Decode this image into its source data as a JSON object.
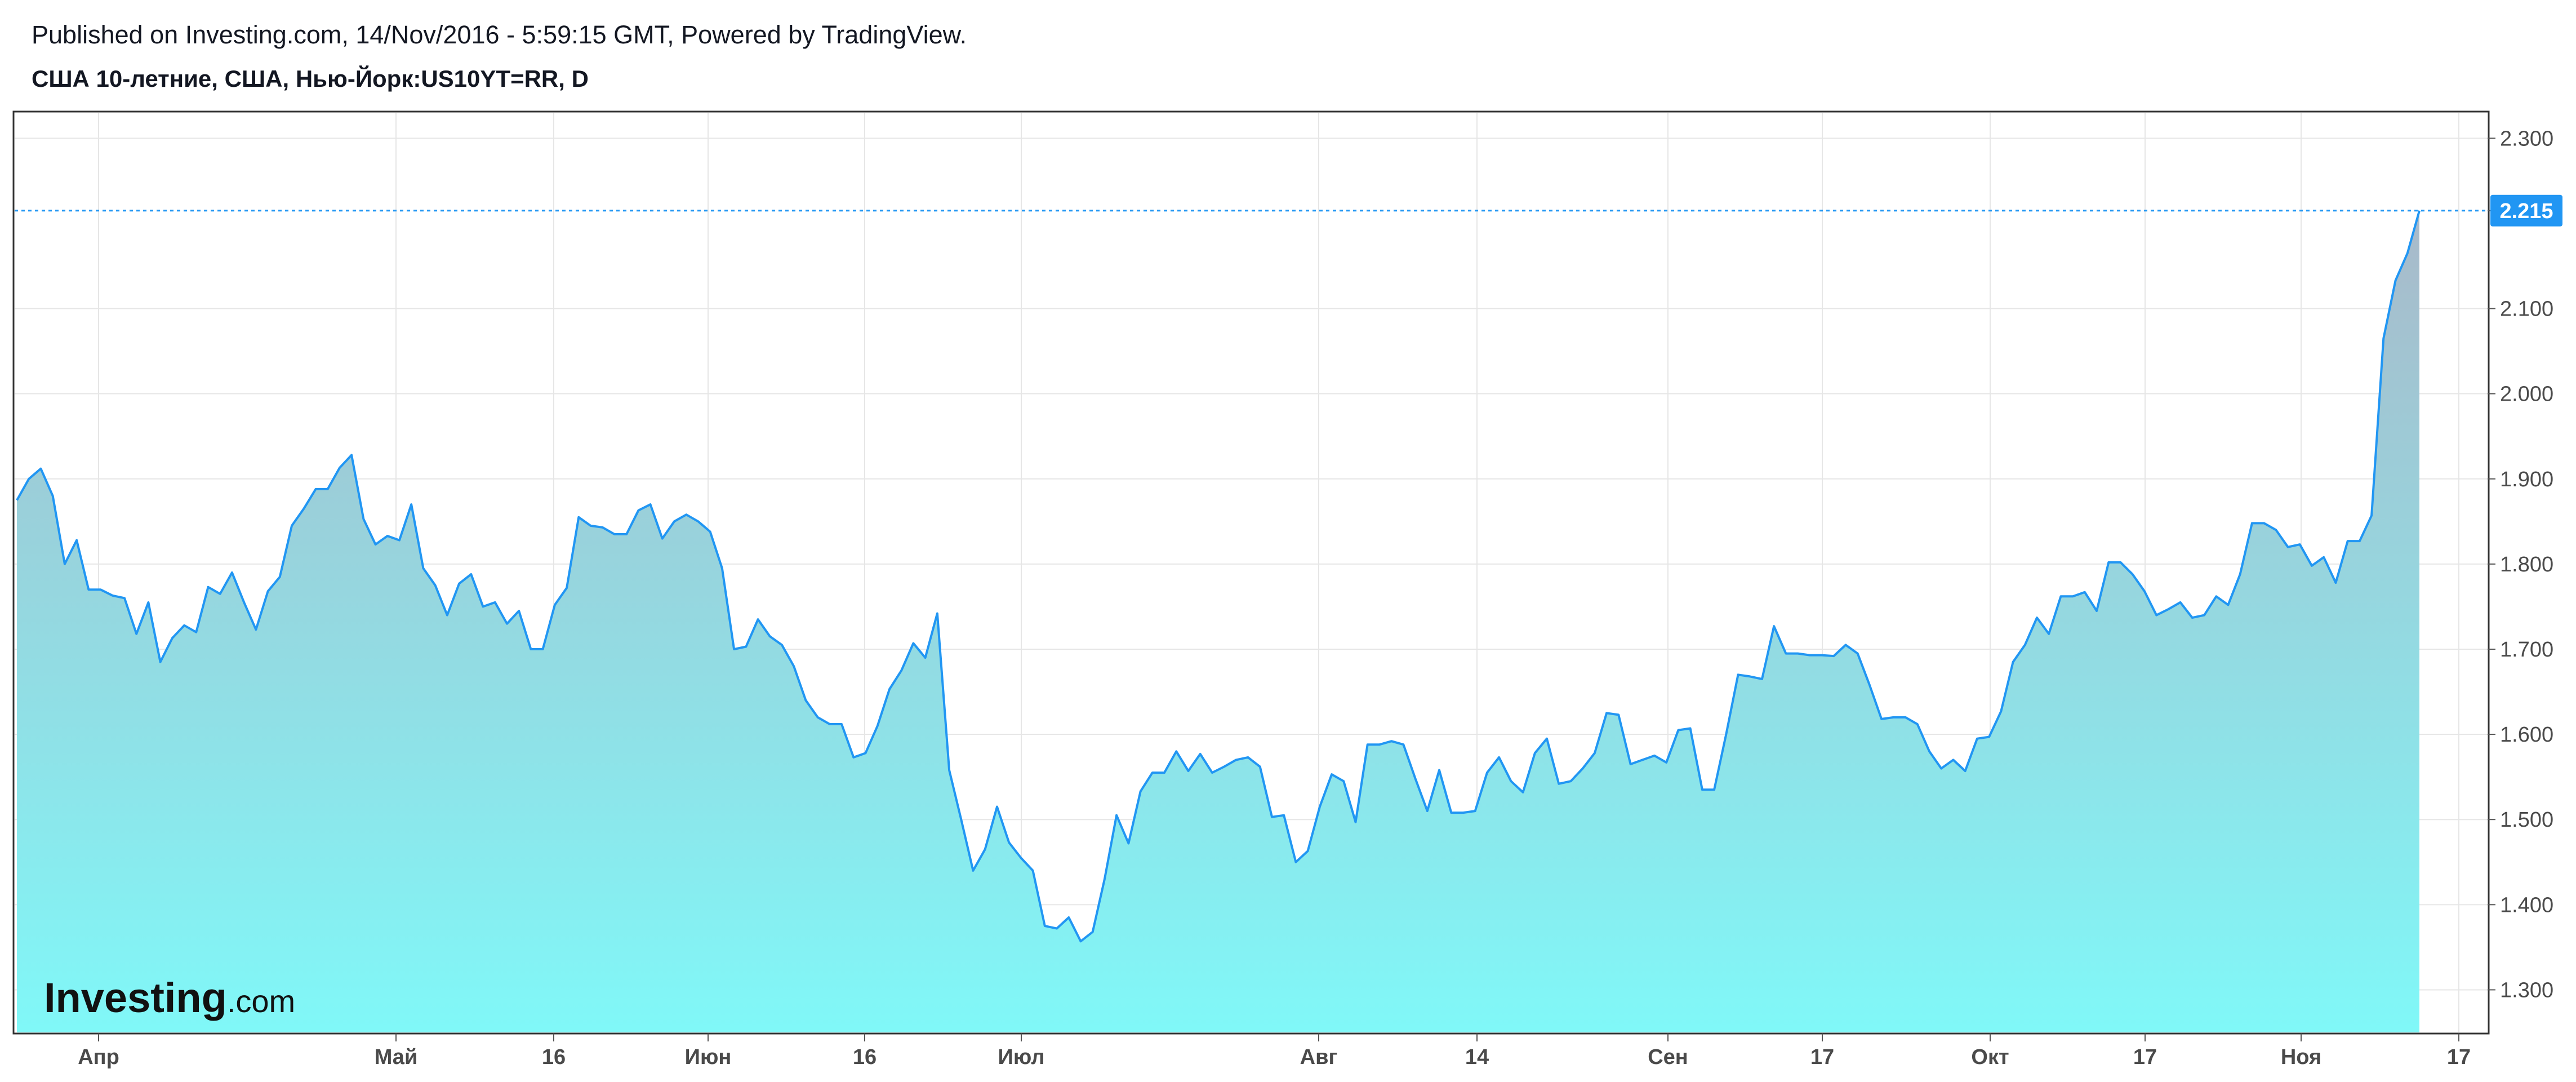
{
  "header": {
    "published": "Published on Investing.com, 14/Nov/2016 - 5:59:15 GMT, Powered by TradingView.",
    "symbol": "США 10-летние, США, Нью-Йорк:US10YT=RR, D"
  },
  "logo": {
    "main": "Investing",
    "sub": ".com"
  },
  "colors": {
    "line": "#2196f3",
    "fill_top": "#a9b9c9",
    "fill_bottom": "#80f8f8",
    "grid": "#e6e6e6",
    "last_label_bg": "#2196f3"
  },
  "chart_data": {
    "type": "area",
    "title": "",
    "xlabel": "",
    "ylabel": "",
    "x_tick_labels": [
      "Апр",
      "Май",
      "16",
      "Июн",
      "16",
      "Июл",
      "Авг",
      "14",
      "Сен",
      "17",
      "Окт",
      "17",
      "Ноя",
      "17"
    ],
    "y_tick_labels": [
      "1.300",
      "1.400",
      "1.500",
      "1.600",
      "1.700",
      "1.800",
      "1.900",
      "2.000",
      "2.100",
      "2.215",
      "2.300"
    ],
    "ylim": [
      1.25,
      2.33
    ],
    "grid": true,
    "last_value": "2.215",
    "series": [
      {
        "values": [
          1.875,
          1.9,
          1.912,
          1.88,
          1.8,
          1.828,
          1.77,
          1.77,
          1.763,
          1.76,
          1.718,
          1.755,
          1.685,
          1.713,
          1.728,
          1.72,
          1.773,
          1.765,
          1.79,
          1.755,
          1.723,
          1.768,
          1.785,
          1.845,
          1.865,
          1.888,
          1.888,
          1.913,
          1.928,
          1.853,
          1.823,
          1.833,
          1.828,
          1.87,
          1.795,
          1.775,
          1.74,
          1.777,
          1.788,
          1.75,
          1.755,
          1.73,
          1.745,
          1.7,
          1.7,
          1.752,
          1.772,
          1.855,
          1.845,
          1.843,
          1.835,
          1.835,
          1.863,
          1.87,
          1.83,
          1.85,
          1.858,
          1.85,
          1.838,
          1.795,
          1.7,
          1.703,
          1.735,
          1.715,
          1.705,
          1.68,
          1.64,
          1.62,
          1.612,
          1.612,
          1.573,
          1.578,
          1.61,
          1.653,
          1.675,
          1.707,
          1.69,
          1.742,
          1.558,
          1.5,
          1.44,
          1.465,
          1.515,
          1.473,
          1.455,
          1.44,
          1.375,
          1.372,
          1.385,
          1.357,
          1.368,
          1.43,
          1.505,
          1.472,
          1.533,
          1.555,
          1.555,
          1.58,
          1.557,
          1.577,
          1.555,
          1.562,
          1.57,
          1.573,
          1.562,
          1.503,
          1.505,
          1.45,
          1.463,
          1.515,
          1.553,
          1.545,
          1.497,
          1.588,
          1.588,
          1.592,
          1.588,
          1.548,
          1.51,
          1.558,
          1.508,
          1.508,
          1.51,
          1.555,
          1.573,
          1.545,
          1.532,
          1.578,
          1.595,
          1.542,
          1.545,
          1.56,
          1.578,
          1.625,
          1.623,
          1.565,
          1.57,
          1.575,
          1.567,
          1.605,
          1.607,
          1.535,
          1.535,
          1.6,
          1.67,
          1.668,
          1.665,
          1.727,
          1.695,
          1.695,
          1.693,
          1.693,
          1.692,
          1.705,
          1.695,
          1.658,
          1.618,
          1.62,
          1.62,
          1.612,
          1.58,
          1.56,
          1.57,
          1.557,
          1.595,
          1.597,
          1.627,
          1.685,
          1.705,
          1.737,
          1.718,
          1.762,
          1.762,
          1.767,
          1.745,
          1.802,
          1.802,
          1.788,
          1.768,
          1.74,
          1.747,
          1.755,
          1.737,
          1.74,
          1.762,
          1.752,
          1.788,
          1.848,
          1.848,
          1.84,
          1.82,
          1.823,
          1.798,
          1.808,
          1.778,
          1.827,
          1.827,
          1.857,
          2.065,
          2.133,
          2.165,
          2.215
        ]
      }
    ]
  }
}
